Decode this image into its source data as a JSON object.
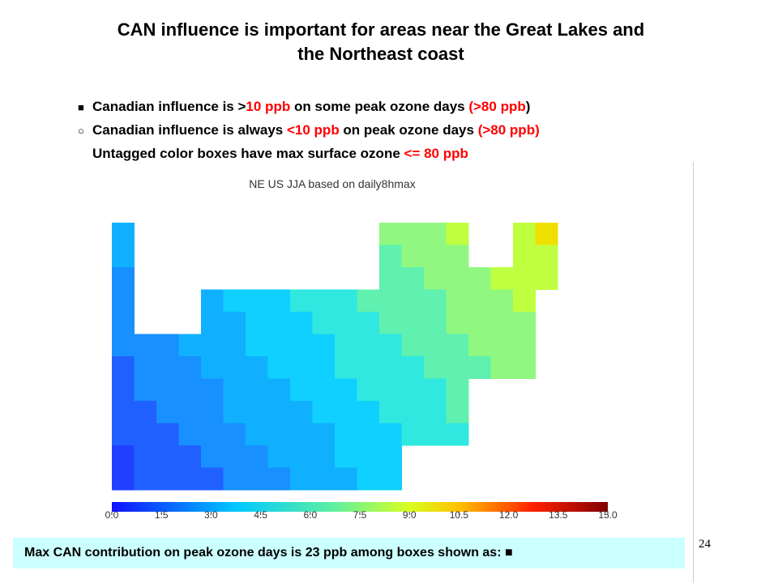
{
  "title": [
    "CAN influence is important for areas near the Great Lakes and",
    "the Northeast coast"
  ],
  "bullets": [
    {
      "marker": "■",
      "segments": [
        {
          "text": "Canadian influence is >",
          "color": "#000000"
        },
        {
          "text": "10 ppb",
          "color": "#ff0000"
        },
        {
          "text": " on some peak ozone days ",
          "color": "#000000"
        },
        {
          "text": "(>80 ppb",
          "color": "#ff0000"
        },
        {
          "text": ")",
          "color": "#000000"
        }
      ]
    },
    {
      "marker": "○",
      "segments": [
        {
          "text": "Canadian influence is always ",
          "color": "#000000"
        },
        {
          "text": "<10 ppb",
          "color": "#ff0000"
        },
        {
          "text": " on peak ozone days ",
          "color": "#000000"
        },
        {
          "text": "(>80 ppb)",
          "color": "#ff0000"
        }
      ]
    },
    {
      "segments": [
        {
          "text": "Untagged color boxes have max surface ozone ",
          "color": "#000000"
        },
        {
          "text": "<= 80 ppb",
          "color": "#ff0000"
        }
      ]
    }
  ],
  "map": {
    "title": "NE US JJA based on daily8hmax",
    "colorbar": {
      "range": [
        0,
        15
      ],
      "ticks": [
        {
          "value": 0,
          "label": "0.0"
        },
        {
          "value": 1.5,
          "label": "1.5"
        },
        {
          "value": 3,
          "label": "3.0"
        },
        {
          "value": 4.5,
          "label": "4.5"
        },
        {
          "value": 6,
          "label": "6.0"
        },
        {
          "value": 7.5,
          "label": "7.5"
        },
        {
          "value": 9,
          "label": "9.0"
        },
        {
          "value": 10.5,
          "label": "10.5"
        },
        {
          "value": 12,
          "label": "12.0"
        },
        {
          "value": 13.5,
          "label": "13.5"
        },
        {
          "value": 15,
          "label": "15.0"
        }
      ]
    }
  },
  "footer": "Max CAN contribution on peak ozone days is 23 ppb among boxes shown as:  ■",
  "page_number": "24"
}
